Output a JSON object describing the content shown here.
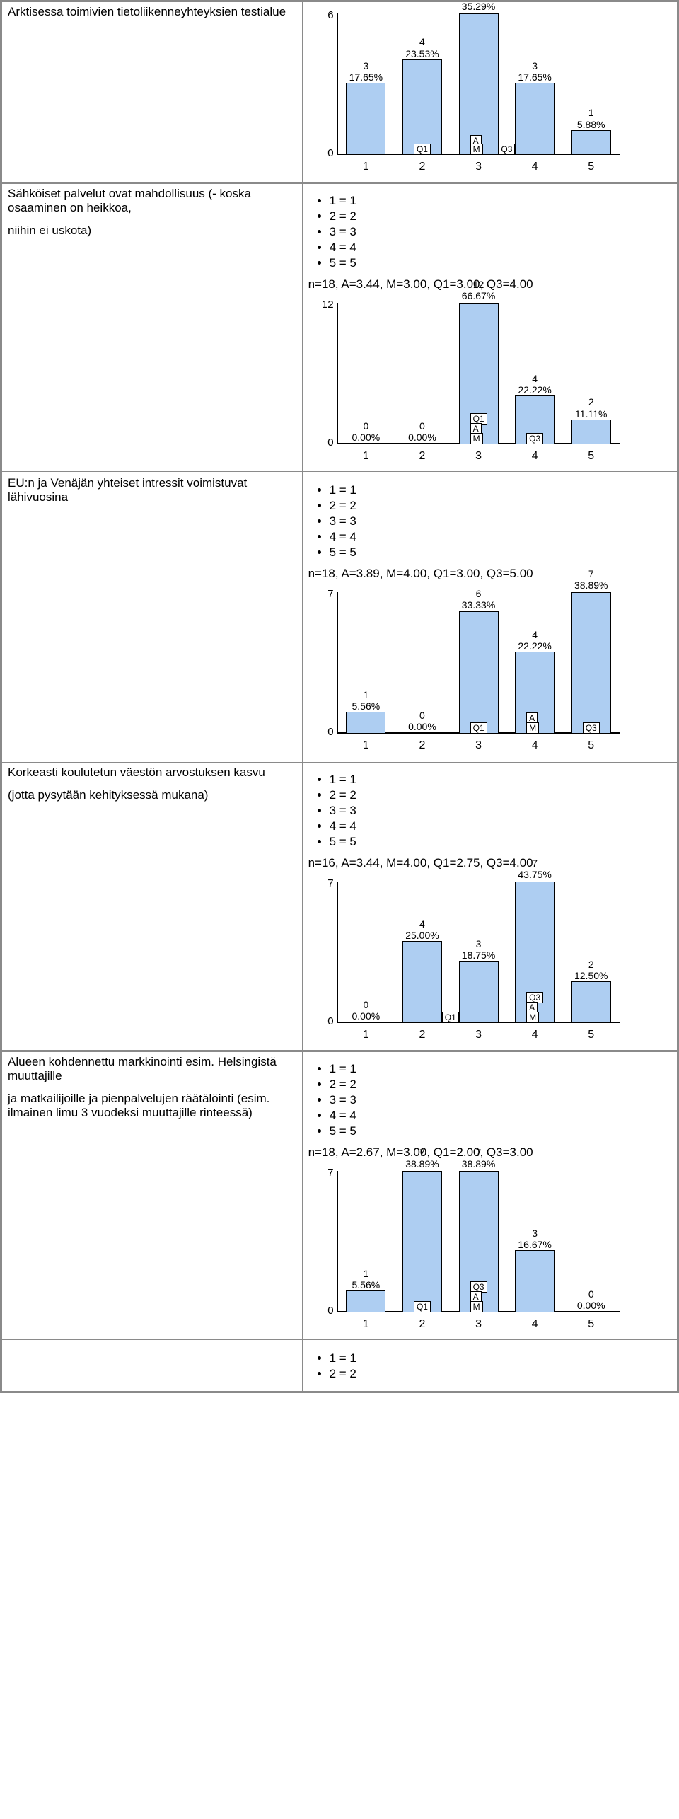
{
  "legend_items": [
    "1 = 1",
    "2 = 2",
    "3 = 3",
    "4 = 4",
    "5 = 5"
  ],
  "last_legend_items": [
    "1 = 1",
    "2 = 2"
  ],
  "bar_color": "#aecef2",
  "border_color": "#000000",
  "rows": [
    {
      "text": "Arktisessa toimivien tietoliikenneyhteyksien testialue",
      "show_legend": false,
      "stats": "",
      "chart": {
        "ymax": 6,
        "y0": "0",
        "ymax_label": "6",
        "categories": [
          "1",
          "2",
          "3",
          "4",
          "5"
        ],
        "counts": [
          3,
          4,
          6,
          3,
          1
        ],
        "pcts": [
          "17.65%",
          "23.53%",
          "35.29%",
          "17.65%",
          "5.88%"
        ],
        "markers": [
          {
            "label": "Q1",
            "cat": 2,
            "y": 0
          },
          {
            "label": "A",
            "cat": 3,
            "y": 12
          },
          {
            "label": "M",
            "cat": 3,
            "y": 0
          },
          {
            "label": "Q3",
            "cat": 3.5,
            "y": 0
          }
        ]
      }
    },
    {
      "text": "Sähköiset palvelut ovat mahdollisuus (- koska osaaminen on heikkoa,\n\nniihin ei uskota)",
      "show_legend": true,
      "stats": "n=18, A=3.44, M=3.00, Q1=3.00, Q3=4.00",
      "chart": {
        "ymax": 12,
        "y0": "0",
        "ymax_label": "12",
        "categories": [
          "1",
          "2",
          "3",
          "4",
          "5"
        ],
        "counts": [
          0,
          0,
          12,
          4,
          2
        ],
        "pcts": [
          "0.00%",
          "0.00%",
          "66.67%",
          "22.22%",
          "11.11%"
        ],
        "markers": [
          {
            "label": "Q1",
            "cat": 3,
            "y": 28
          },
          {
            "label": "A",
            "cat": 3,
            "y": 14
          },
          {
            "label": "M",
            "cat": 3,
            "y": 0
          },
          {
            "label": "Q3",
            "cat": 4,
            "y": 0
          }
        ]
      }
    },
    {
      "text": "EU:n ja Venäjän yhteiset intressit voimistuvat lähivuosina",
      "show_legend": true,
      "stats": "n=18, A=3.89, M=4.00, Q1=3.00, Q3=5.00",
      "chart": {
        "ymax": 7,
        "y0": "0",
        "ymax_label": "7",
        "categories": [
          "1",
          "2",
          "3",
          "4",
          "5"
        ],
        "counts": [
          1,
          0,
          6,
          4,
          7
        ],
        "pcts": [
          "5.56%",
          "0.00%",
          "33.33%",
          "22.22%",
          "38.89%"
        ],
        "markers": [
          {
            "label": "Q1",
            "cat": 3,
            "y": 0
          },
          {
            "label": "A",
            "cat": 4,
            "y": 14
          },
          {
            "label": "M",
            "cat": 4,
            "y": 0
          },
          {
            "label": "Q3",
            "cat": 5,
            "y": 0
          }
        ]
      }
    },
    {
      "text": "Korkeasti koulutetun väestön arvostuksen kasvu\n\n(jotta pysytään kehityksessä mukana)",
      "show_legend": true,
      "stats": "n=16, A=3.44, M=4.00, Q1=2.75, Q3=4.00",
      "chart": {
        "ymax": 7,
        "y0": "0",
        "ymax_label": "7",
        "categories": [
          "1",
          "2",
          "3",
          "4",
          "5"
        ],
        "counts": [
          0,
          4,
          3,
          7,
          2
        ],
        "pcts": [
          "0.00%",
          "25.00%",
          "18.75%",
          "43.75%",
          "12.50%"
        ],
        "markers": [
          {
            "label": "Q1",
            "cat": 2.5,
            "y": 0
          },
          {
            "label": "Q3",
            "cat": 4,
            "y": 28
          },
          {
            "label": "A",
            "cat": 4,
            "y": 14
          },
          {
            "label": "M",
            "cat": 4,
            "y": 0
          }
        ]
      }
    },
    {
      "text": "Alueen kohdennettu markkinointi esim. Helsingistä muuttajille\n\nja matkailijoille ja pienpalvelujen räätälöinti (esim. ilmainen limu 3 vuodeksi muuttajille rinteessä)",
      "show_legend": true,
      "stats": "n=18, A=2.67, M=3.00, Q1=2.00, Q3=3.00",
      "chart": {
        "ymax": 7,
        "y0": "0",
        "ymax_label": "7",
        "categories": [
          "1",
          "2",
          "3",
          "4",
          "5"
        ],
        "counts": [
          1,
          7,
          7,
          3,
          0
        ],
        "pcts": [
          "5.56%",
          "38.89%",
          "38.89%",
          "16.67%",
          "0.00%"
        ],
        "markers": [
          {
            "label": "Q1",
            "cat": 2,
            "y": 0
          },
          {
            "label": "Q3",
            "cat": 3,
            "y": 28
          },
          {
            "label": "A",
            "cat": 3,
            "y": 14
          },
          {
            "label": "M",
            "cat": 3,
            "y": 0
          }
        ]
      }
    }
  ]
}
